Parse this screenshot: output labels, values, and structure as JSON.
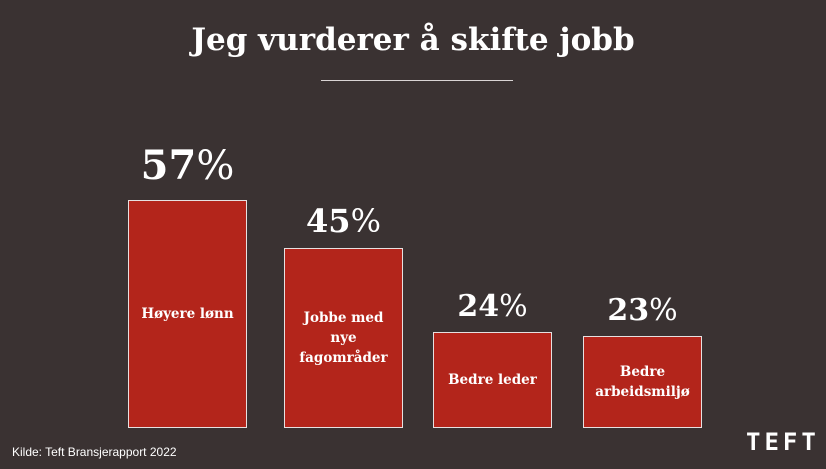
{
  "chart_data": {
    "type": "bar",
    "title": "Jeg vurderer å skifte jobb",
    "categories": [
      "Høyere lønn",
      "Jobbe med nye fagområder",
      "Bedre leder",
      "Bedre arbeidsmiljø"
    ],
    "values": [
      57,
      45,
      24,
      23
    ],
    "value_labels": [
      "57",
      "45",
      "24",
      "23"
    ],
    "value_suffix": "%",
    "ylim": [
      0,
      100
    ],
    "bar_color": "#b3251b",
    "grid": false,
    "legend": "none"
  },
  "footer": {
    "source": "Kilde: Teft Bransjerapport 2022",
    "logo": "TEFT"
  }
}
